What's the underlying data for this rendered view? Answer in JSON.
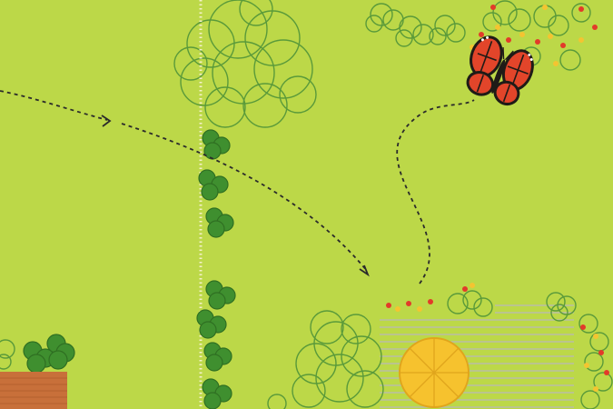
{
  "scene": {
    "description_name": "garden-plan-illustration",
    "colors": {
      "lawn": "#bcd848",
      "foliage_outline": "#5a9a3a",
      "shrub_fill": "#3f8f2f",
      "shrub_outline": "#2f6f22",
      "fence_dots": "#f4f1c8",
      "path_dash": "#2b2b2b",
      "patio_lines": "#b9b9b9",
      "umbrella": "#f6c22e",
      "umbrella_rim": "#e0a51c",
      "deck": "#c8703a",
      "butterfly_orange": "#e2452a",
      "butterfly_black": "#1f1b17",
      "flower_red": "#e23b2a",
      "flower_yellow": "#f4c431"
    },
    "icons": [
      "large-tree-canopy-icon",
      "shrub-cluster-icon",
      "dotted-fence-line-icon",
      "dashed-flight-path-icon",
      "butterfly-icon",
      "patio-umbrella-icon",
      "wooden-deck-icon",
      "flower-bed-icon"
    ]
  }
}
